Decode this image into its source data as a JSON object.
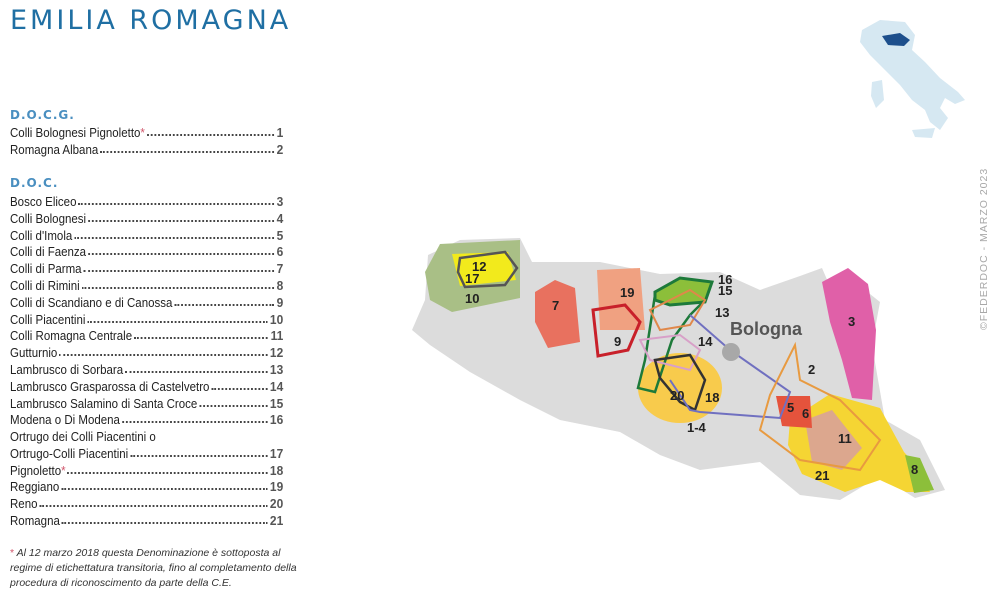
{
  "title": "EMILIA ROMAGNA",
  "docg": {
    "heading": "D.O.C.G.",
    "items": [
      {
        "name": "Colli Bolognesi Pignoletto",
        "mark": "*",
        "num": "1"
      },
      {
        "name": "Romagna Albana",
        "num": "2"
      }
    ]
  },
  "doc": {
    "heading": "D.O.C.",
    "items": [
      {
        "name": "Bosco Eliceo",
        "num": "3"
      },
      {
        "name": "Colli Bolognesi",
        "num": "4"
      },
      {
        "name": "Colli d'Imola",
        "num": "5"
      },
      {
        "name": "Colli di Faenza",
        "num": "6"
      },
      {
        "name": "Colli di Parma",
        "num": "7"
      },
      {
        "name": "Colli di Rimini",
        "num": "8"
      },
      {
        "name": "Colli di Scandiano e di Canossa",
        "num": "9"
      },
      {
        "name": "Colli Piacentini",
        "num": "10"
      },
      {
        "name": "Colli Romagna Centrale",
        "num": "11"
      },
      {
        "name": "Gutturnio",
        "num": "12"
      },
      {
        "name": "Lambrusco di Sorbara",
        "num": "13"
      },
      {
        "name": "Lambrusco Grasparossa di Castelvetro",
        "num": "14"
      },
      {
        "name": "Lambrusco Salamino di Santa Croce",
        "num": "15"
      },
      {
        "name": "Modena o Di Modena",
        "num": "16"
      },
      {
        "name_line1": "Ortrugo dei Colli Piacentini o",
        "name": "Ortrugo-Colli Piacentini",
        "num": "17"
      },
      {
        "name": "Pignoletto",
        "mark": "*",
        "num": "18"
      },
      {
        "name": "Reggiano",
        "num": "19"
      },
      {
        "name": "Reno",
        "num": "20"
      },
      {
        "name": "Romagna",
        "num": "21"
      }
    ]
  },
  "footnote": {
    "mark": "*",
    "text": "Al 12 marzo 2018 questa Denominazione è sottoposta al regime di etichettatura transitoria, fino al completamento della procedura di riconoscimento da parte della C.E."
  },
  "watermark": "©FEDERDOC - MARZO 2023",
  "map": {
    "city": "Bologna",
    "labels": {
      "l1_4": "1-4",
      "l2": "2",
      "l3": "3",
      "l5": "5",
      "l6": "6",
      "l7": "7",
      "l8": "8",
      "l9": "9",
      "l10": "10",
      "l11": "11",
      "l12": "12",
      "l13": "13",
      "l14": "14",
      "l15": "15",
      "l16": "16",
      "l17": "17",
      "l18": "18",
      "l19": "19",
      "l20": "20",
      "l21": "21"
    },
    "colors": {
      "region": "#dcdcdc",
      "italy": "#d6e8f2",
      "emilia_highlight": "#1d4f8c",
      "bosco_eliceo": "#e060a8",
      "romagna": "#f5d533",
      "colli_piacentini": "#a9bf86",
      "gutturnio": "#f2ea1c",
      "parma": "#e8715f",
      "reggiano": "#f0a181",
      "reno": "#f8cb4c",
      "romagna_centrale": "#dca78e",
      "imola_faenza": "#e5533c",
      "rimini": "#8cbf3a"
    }
  }
}
